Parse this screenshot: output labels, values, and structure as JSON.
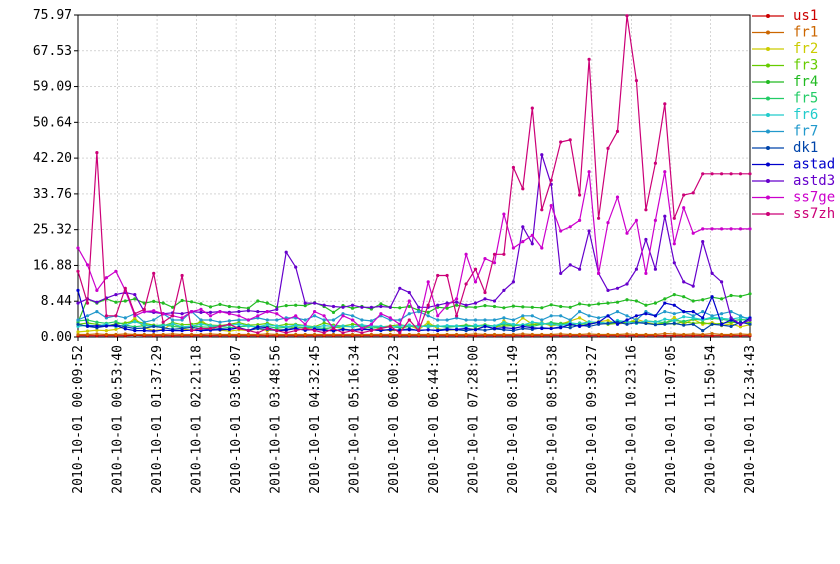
{
  "chart_data": {
    "type": "line",
    "title": "",
    "xlabel": "",
    "ylabel": "",
    "ylim": [
      0,
      75.97
    ],
    "y_ticks": [
      "0.00",
      "8.44",
      "16.88",
      "25.32",
      "33.76",
      "42.20",
      "50.64",
      "59.09",
      "67.53",
      "75.97"
    ],
    "x_tick_labels": [
      "2010-10-01 00:09:52",
      "2010-10-01 00:53:40",
      "2010-10-01 01:37:29",
      "2010-10-01 02:21:18",
      "2010-10-01 03:05:07",
      "2010-10-01 03:48:56",
      "2010-10-01 04:32:45",
      "2010-10-01 05:16:34",
      "2010-10-01 06:00:23",
      "2010-10-01 06:44:11",
      "2010-10-01 07:28:00",
      "2010-10-01 08:11:49",
      "2010-10-01 08:55:38",
      "2010-10-01 09:39:27",
      "2010-10-01 10:23:16",
      "2010-10-01 11:07:05",
      "2010-10-01 11:50:54",
      "2010-10-01 12:34:43"
    ],
    "grid": true,
    "legend_position": "right",
    "series": [
      {
        "name": "us1",
        "color": "#cc0000",
        "values": [
          0.3,
          0.3,
          0.3,
          0.3,
          0.3,
          0.3,
          0.4,
          0.3,
          0.3,
          0.3,
          0.3,
          0.3,
          0.3,
          0.3,
          0.3,
          0.3,
          0.3,
          0.3,
          0.3,
          0.3,
          0.3,
          0.3,
          0.3,
          0.3,
          0.3,
          0.3,
          0.3,
          0.3,
          0.3,
          0.3,
          0.3,
          0.3,
          0.3,
          0.3,
          0.3,
          0.3,
          0.3,
          0.3,
          0.3,
          0.3,
          0.3,
          0.3,
          0.3,
          0.3,
          0.3,
          0.3,
          0.3,
          0.3,
          0.3,
          0.3,
          0.3,
          0.3,
          0.3,
          0.3,
          0.3,
          0.3,
          0.3,
          0.3,
          0.3,
          0.3,
          0.3,
          0.3,
          0.3,
          0.3,
          0.3,
          0.3,
          0.3,
          0.3,
          0.3,
          0.3,
          0.3,
          0.3
        ]
      },
      {
        "name": "fr1",
        "color": "#cc6600",
        "values": [
          0.6,
          0.6,
          0.7,
          0.6,
          0.6,
          0.7,
          0.6,
          0.6,
          0.6,
          0.6,
          0.7,
          0.6,
          0.6,
          0.6,
          0.7,
          0.6,
          0.6,
          0.6,
          0.6,
          0.6,
          0.7,
          0.6,
          0.6,
          0.6,
          0.6,
          0.6,
          0.6,
          0.6,
          0.6,
          0.6,
          0.6,
          0.6,
          0.6,
          0.6,
          0.6,
          0.6,
          0.6,
          0.6,
          0.6,
          0.6,
          0.6,
          0.6,
          0.7,
          0.6,
          0.6,
          0.6,
          0.6,
          0.7,
          0.6,
          0.6,
          0.6,
          0.7,
          0.6,
          0.6,
          0.7,
          0.6,
          0.6,
          0.6,
          0.7,
          0.6,
          0.6,
          0.6,
          0.8,
          0.7,
          0.6,
          0.7,
          0.6,
          0.8,
          0.6,
          0.6,
          0.7,
          0.6
        ]
      },
      {
        "name": "fr2",
        "color": "#cccc00",
        "values": [
          1.2,
          1.4,
          1.6,
          1.5,
          1.8,
          2.5,
          4.5,
          2.2,
          1.5,
          1.8,
          3.2,
          1.9,
          1.6,
          4.0,
          2.2,
          1.6,
          1.4,
          1.7,
          1.5,
          2.0,
          1.5,
          1.8,
          1.6,
          2.4,
          2.1,
          1.8,
          1.7,
          2.5,
          1.9,
          1.6,
          1.8,
          2.7,
          1.8,
          1.5,
          1.6,
          2.8,
          1.7,
          3.5,
          1.9,
          1.6,
          1.7,
          2.0,
          1.8,
          2.6,
          1.9,
          3.8,
          2.4,
          4.5,
          3.0,
          3.4,
          2.6,
          3.0,
          3.8,
          4.5,
          3.3,
          3.6,
          3.9,
          3.1,
          3.3,
          4.2,
          3.5,
          3.0,
          3.2,
          4.6,
          3.0,
          4.2,
          3.0,
          3.4,
          2.7,
          3.1,
          2.4,
          2.9
        ]
      },
      {
        "name": "fr3",
        "color": "#66cc00",
        "values": [
          3.0,
          3.3,
          3.0,
          2.6,
          3.1,
          3.3,
          3.8,
          3.2,
          2.8,
          2.6,
          3.4,
          2.9,
          3.0,
          3.4,
          2.8,
          2.7,
          3.0,
          3.4,
          2.8,
          2.9,
          3.2,
          2.6,
          3.0,
          3.0,
          2.7,
          2.4,
          3.3,
          2.8,
          2.6,
          3.0,
          2.8,
          2.5,
          2.4,
          2.6,
          2.9,
          2.5,
          2.4,
          2.8,
          2.6,
          2.5,
          2.6,
          2.8,
          2.6,
          2.9,
          2.5,
          2.6,
          2.7,
          2.8,
          2.9,
          3.1,
          3.0,
          3.2,
          3.3,
          3.0,
          3.1,
          3.4,
          3.0,
          3.2,
          3.5,
          3.7,
          3.2,
          3.0,
          3.3,
          3.1,
          3.6,
          3.2,
          3.4,
          3.0,
          3.2,
          3.5,
          3.3,
          3.4
        ]
      },
      {
        "name": "fr4",
        "color": "#22bb22",
        "values": [
          3.5,
          9.0,
          8.0,
          9.0,
          8.2,
          8.5,
          9.0,
          8.0,
          8.4,
          8.0,
          7.0,
          8.6,
          8.3,
          7.8,
          7.1,
          7.7,
          7.2,
          7.0,
          6.8,
          8.5,
          8.0,
          7.0,
          7.4,
          7.5,
          7.4,
          8.1,
          7.2,
          5.8,
          7.4,
          6.8,
          7.2,
          6.6,
          7.8,
          7.0,
          6.9,
          7.2,
          6.3,
          5.8,
          7.0,
          6.8,
          7.5,
          7.1,
          7.0,
          7.4,
          7.2,
          6.9,
          7.3,
          7.1,
          7.0,
          6.9,
          7.6,
          7.2,
          7.0,
          7.8,
          7.5,
          7.8,
          8.0,
          8.2,
          8.8,
          8.5,
          7.5,
          8.0,
          9.0,
          10.0,
          9.5,
          8.5,
          8.8,
          9.4,
          9.0,
          9.8,
          9.6,
          10.2
        ]
      },
      {
        "name": "fr5",
        "color": "#22cc66",
        "values": [
          3.8,
          4.0,
          3.5,
          3.2,
          3.6,
          2.8,
          2.4,
          2.7,
          2.6,
          2.9,
          2.5,
          2.3,
          2.6,
          2.4,
          2.3,
          2.5,
          2.2,
          2.4,
          2.6,
          2.3,
          2.5,
          2.1,
          2.3,
          2.4,
          2.2,
          2.3,
          2.0,
          2.2,
          2.5,
          2.4,
          2.6,
          2.1,
          2.3,
          2.4,
          2.2,
          2.5,
          2.7,
          2.4,
          2.6,
          2.3,
          2.5,
          2.7,
          2.4,
          2.8,
          2.6,
          3.1,
          2.7,
          2.9,
          2.5,
          3.0,
          3.4,
          3.1,
          2.7,
          3.3,
          3.0,
          3.5,
          3.2,
          3.7,
          3.6,
          3.2,
          3.8,
          3.6,
          3.4,
          3.9,
          3.7,
          4.2,
          4.0,
          4.4,
          4.2,
          3.8,
          4.1,
          4.0
        ]
      },
      {
        "name": "fr6",
        "color": "#22cccc",
        "values": [
          2.5,
          2.8,
          2.6,
          3.0,
          2.4,
          2.8,
          3.6,
          2.9,
          2.5,
          2.6,
          3.1,
          2.4,
          2.6,
          3.0,
          2.7,
          2.5,
          2.8,
          3.0,
          2.6,
          2.4,
          2.9,
          2.6,
          2.4,
          2.8,
          2.6,
          2.3,
          2.7,
          2.5,
          2.6,
          2.4,
          2.8,
          2.6,
          2.5,
          2.3,
          2.6,
          2.8,
          2.4,
          2.6,
          2.5,
          2.7,
          2.6,
          2.3,
          2.8,
          2.5,
          2.6,
          3.4,
          3.0,
          2.8,
          3.5,
          3.2,
          3.0,
          2.7,
          3.3,
          3.1,
          3.6,
          3.4,
          3.2,
          3.9,
          3.6,
          3.2,
          3.8,
          3.5,
          4.2,
          3.9,
          4.8,
          4.5,
          4.1,
          4.7,
          4.4,
          4.2,
          4.6,
          4.5
        ]
      },
      {
        "name": "fr7",
        "color": "#2299cc",
        "values": [
          4.0,
          5.0,
          6.0,
          4.5,
          5.0,
          4.5,
          5.5,
          3.5,
          4.0,
          5.5,
          4.0,
          4.0,
          6.0,
          4.0,
          4.0,
          3.5,
          3.8,
          4.0,
          4.0,
          4.5,
          4.0,
          4.0,
          4.5,
          4.5,
          4.0,
          5.0,
          4.0,
          4.0,
          5.5,
          5.0,
          4.0,
          3.8,
          5.0,
          4.0,
          4.0,
          5.5,
          6.0,
          5.0,
          4.0,
          4.0,
          4.5,
          4.0,
          4.0,
          4.0,
          4.0,
          4.5,
          4.0,
          5.0,
          5.0,
          4.0,
          5.0,
          5.0,
          4.0,
          6.0,
          5.0,
          4.5,
          5.0,
          6.0,
          5.0,
          4.0,
          6.0,
          5.0,
          6.0,
          5.5,
          6.0,
          5.0,
          6.0,
          5.0,
          5.5,
          6.0,
          5.0,
          4.0
        ]
      },
      {
        "name": "dk1",
        "color": "#0044aa",
        "values": [
          3.0,
          2.5,
          2.2,
          2.6,
          2.9,
          2.4,
          2.0,
          2.1,
          2.5,
          2.2,
          1.8,
          2.0,
          2.3,
          1.9,
          1.7,
          2.0,
          1.8,
          2.2,
          1.6,
          2.0,
          1.8,
          1.5,
          1.8,
          2.0,
          1.6,
          1.9,
          1.7,
          1.4,
          1.8,
          1.6,
          2.0,
          1.7,
          1.5,
          1.8,
          1.6,
          1.9,
          1.5,
          1.7,
          1.6,
          1.9,
          1.7,
          1.5,
          1.8,
          1.6,
          1.9,
          1.7,
          1.5,
          2.0,
          1.8,
          2.2,
          2.0,
          2.4,
          2.2,
          2.8,
          2.5,
          3.0,
          3.2,
          3.5,
          3.0,
          3.4,
          3.2,
          2.9,
          3.0,
          3.2,
          2.8,
          3.0,
          1.5,
          3.0,
          2.8,
          2.5,
          3.5,
          3.0
        ]
      },
      {
        "name": "astad",
        "color": "#0000cc",
        "values": [
          11.0,
          2.6,
          2.6,
          2.6,
          2.7,
          1.9,
          1.5,
          1.5,
          1.4,
          1.6,
          1.5,
          1.5,
          1.6,
          1.5,
          1.6,
          1.7,
          1.8,
          2.2,
          1.5,
          2.4,
          2.2,
          1.5,
          1.6,
          2.0,
          1.6,
          1.8,
          1.6,
          1.5,
          1.8,
          1.5,
          1.8,
          1.7,
          1.6,
          1.7,
          1.6,
          1.7,
          1.6,
          1.7,
          1.5,
          1.7,
          1.8,
          2.0,
          1.7,
          2.5,
          2.0,
          2.2,
          2.0,
          2.5,
          2.2,
          2.0,
          2.0,
          2.2,
          3.0,
          2.5,
          3.0,
          3.5,
          5.0,
          3.0,
          4.0,
          5.0,
          5.5,
          5.0,
          8.0,
          7.5,
          6.0,
          6.0,
          4.5,
          9.5,
          3.0,
          4.0,
          3.0,
          4.5
        ]
      },
      {
        "name": "astd3",
        "color": "#6600cc",
        "values": [
          8.0,
          9.0,
          8.2,
          9.2,
          10.0,
          10.5,
          10.0,
          6.0,
          5.8,
          5.5,
          5.7,
          5.5,
          6.0,
          5.8,
          5.8,
          6.0,
          5.8,
          6.0,
          6.2,
          6.0,
          6.0,
          6.5,
          20.0,
          16.5,
          8.0,
          8.0,
          7.5,
          7.2,
          7.0,
          7.5,
          7.0,
          7.0,
          7.2,
          7.0,
          11.5,
          10.5,
          7.0,
          7.0,
          7.5,
          8.0,
          8.2,
          7.5,
          8.0,
          9.0,
          8.5,
          11.0,
          13.0,
          26.0,
          22.0,
          43.0,
          36.0,
          15.0,
          17.0,
          16.0,
          25.0,
          15.0,
          11.0,
          11.5,
          12.5,
          16.0,
          23.0,
          16.0,
          28.5,
          17.5,
          13.0,
          12.0,
          22.5,
          15.0,
          13.0,
          4.5,
          3.0,
          4.0
        ]
      },
      {
        "name": "ss7ge",
        "color": "#cc00cc",
        "values": [
          21.0,
          17.0,
          11.0,
          14.0,
          15.5,
          11.0,
          5.0,
          6.0,
          6.2,
          5.5,
          5.0,
          4.5,
          6.0,
          6.5,
          5.0,
          6.0,
          5.5,
          5.0,
          4.0,
          5.0,
          6.0,
          5.5,
          4.0,
          5.0,
          3.0,
          6.0,
          5.0,
          2.0,
          5.0,
          4.0,
          2.0,
          3.0,
          5.5,
          4.5,
          3.0,
          8.5,
          3.0,
          13.0,
          5.0,
          7.5,
          9.0,
          19.5,
          13.0,
          18.5,
          17.5,
          29.0,
          21.0,
          22.5,
          24.0,
          21.0,
          31.0,
          25.0,
          26.0,
          27.5,
          39.0,
          15.0,
          27.0,
          33.0,
          24.5,
          27.5,
          15.0,
          27.5,
          39.0,
          22.0,
          30.5,
          24.5,
          25.5,
          25.5,
          25.5,
          25.5,
          25.5,
          25.5
        ]
      },
      {
        "name": "ss7zh",
        "color": "#cc0077",
        "values": [
          15.5,
          8.0,
          43.5,
          5.0,
          5.0,
          11.5,
          5.5,
          6.5,
          15.0,
          3.5,
          5.0,
          14.5,
          1.5,
          2.0,
          2.0,
          2.5,
          3.0,
          2.0,
          1.5,
          1.0,
          2.0,
          1.5,
          1.0,
          1.5,
          2.0,
          1.5,
          1.0,
          2.0,
          1.0,
          1.5,
          1.0,
          1.5,
          2.0,
          2.5,
          1.0,
          4.0,
          1.5,
          7.5,
          14.5,
          14.5,
          5.0,
          12.5,
          16.0,
          10.5,
          19.5,
          19.5,
          40.0,
          35.0,
          54.0,
          30.0,
          37.0,
          46.0,
          46.5,
          33.5,
          65.5,
          28.0,
          44.5,
          48.5,
          75.8,
          60.5,
          30.0,
          41.0,
          55.0,
          28.0,
          33.5,
          34.0,
          38.5,
          38.5,
          38.5,
          38.5,
          38.5,
          38.5
        ]
      }
    ]
  }
}
